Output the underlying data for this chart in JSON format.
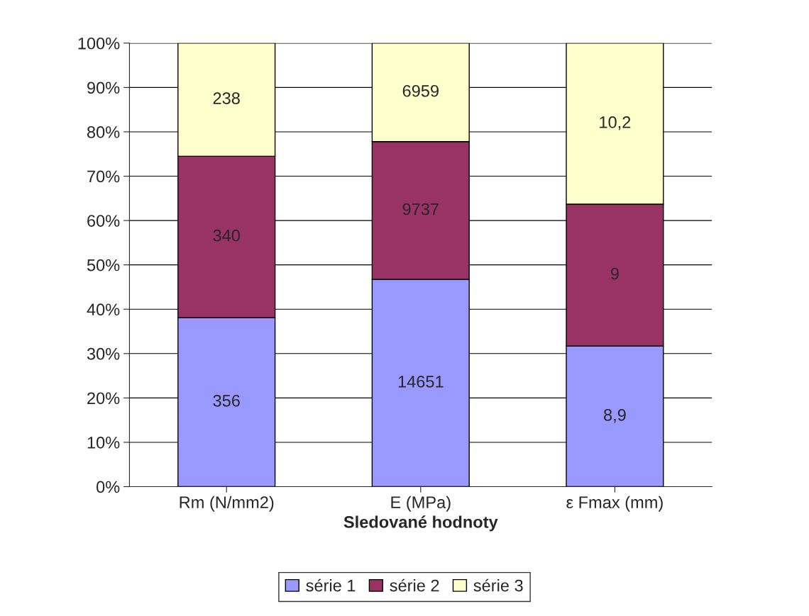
{
  "chart_data": {
    "type": "bar",
    "stacked": true,
    "xlabel": "Sledované hodnoty",
    "categories": [
      "Rm (N/mm2)",
      "E (MPa)",
      "ε Fmax (mm)"
    ],
    "series": [
      {
        "name": "série 1",
        "color": "#9999ff",
        "values": [
          38.1,
          46.7,
          31.7
        ]
      },
      {
        "name": "série 2",
        "color": "#993366",
        "values": [
          36.4,
          31.1,
          32.0
        ]
      },
      {
        "name": "série 3",
        "color": "#ffffcc",
        "values": [
          25.5,
          22.2,
          36.3
        ]
      }
    ],
    "annotations": [
      "356",
      "14651",
      "8,9",
      "340",
      "9737",
      "9",
      "238",
      "6959",
      "10,2"
    ],
    "ylim": [
      0,
      100
    ],
    "yticks": [
      {
        "value": 0,
        "label": "0%"
      },
      {
        "value": 10,
        "label": "10%"
      },
      {
        "value": 20,
        "label": "20%"
      },
      {
        "value": 30,
        "label": "30%"
      },
      {
        "value": 40,
        "label": "40%"
      },
      {
        "value": 50,
        "label": "50%"
      },
      {
        "value": 60,
        "label": "60%"
      },
      {
        "value": 70,
        "label": "70%"
      },
      {
        "value": 80,
        "label": "80%"
      },
      {
        "value": 90,
        "label": "90%"
      },
      {
        "value": 100,
        "label": "100%"
      }
    ],
    "grid": "y",
    "legend": "bottom"
  }
}
